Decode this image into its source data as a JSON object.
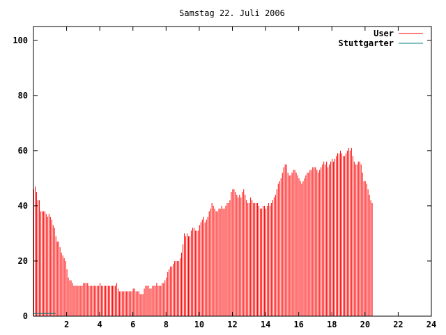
{
  "chart_data": {
    "type": "bar",
    "title": "Samstag 22. Juli 2006",
    "xlabel": "",
    "ylabel": "",
    "xlim": [
      0,
      24
    ],
    "ylim": [
      0,
      105
    ],
    "x_ticks": [
      2,
      4,
      6,
      8,
      10,
      12,
      14,
      16,
      18,
      20,
      22,
      24
    ],
    "y_ticks": [
      0,
      20,
      40,
      60,
      80,
      100
    ],
    "grid": false,
    "legend_position": "top-right",
    "series": [
      {
        "name": "User",
        "color": "#ff0000",
        "start_hour": 0.0,
        "step_hours": 0.0833,
        "values": [
          46,
          47,
          45,
          42,
          42,
          38,
          38,
          38,
          38,
          37,
          36,
          37,
          36,
          35,
          33,
          32,
          29,
          27,
          27,
          25,
          23,
          22,
          21,
          20,
          17,
          14,
          13,
          13,
          12,
          11,
          11,
          11,
          11,
          11,
          11,
          11,
          12,
          12,
          12,
          12,
          11,
          11,
          11,
          11,
          11,
          11,
          11,
          11,
          12,
          11,
          11,
          11,
          11,
          11,
          11,
          11,
          11,
          11,
          11,
          11,
          12,
          10,
          9,
          9,
          9,
          9,
          9,
          9,
          9,
          9,
          9,
          9,
          10,
          10,
          9,
          9,
          9,
          8,
          8,
          8,
          10,
          11,
          11,
          11,
          10,
          10,
          11,
          11,
          11,
          12,
          11,
          11,
          11,
          12,
          12,
          13,
          14,
          16,
          17,
          18,
          18,
          19,
          20,
          20,
          20,
          20,
          21,
          23,
          26,
          30,
          29,
          30,
          29,
          29,
          31,
          32,
          32,
          31,
          31,
          31,
          33,
          34,
          35,
          36,
          34,
          35,
          36,
          38,
          39,
          41,
          40,
          39,
          38,
          38,
          39,
          39,
          40,
          39,
          39,
          40,
          41,
          41,
          42,
          45,
          46,
          46,
          45,
          44,
          43,
          44,
          43,
          45,
          46,
          44,
          42,
          41,
          41,
          43,
          42,
          41,
          41,
          41,
          41,
          40,
          39,
          39,
          40,
          40,
          39,
          40,
          41,
          40,
          41,
          42,
          43,
          44,
          46,
          48,
          49,
          50,
          52,
          54,
          55,
          55,
          52,
          51,
          51,
          52,
          53,
          53,
          52,
          51,
          50,
          49,
          48,
          49,
          50,
          51,
          52,
          52,
          53,
          53,
          54,
          54,
          54,
          53,
          52,
          53,
          54,
          55,
          56,
          55,
          56,
          54,
          55,
          56,
          57,
          56,
          57,
          58,
          59,
          59,
          60,
          59,
          58,
          58,
          59,
          60,
          61,
          60,
          61,
          58,
          56,
          55,
          55,
          56,
          56,
          55,
          52,
          49,
          49,
          48,
          46,
          44,
          42,
          41
        ]
      },
      {
        "name": "Stuttgarter",
        "color": "#008080",
        "start_hour": 0.0,
        "step_hours": 0.0833,
        "values": [
          1,
          1,
          1,
          1,
          1,
          1,
          1,
          1,
          1,
          1,
          1,
          1,
          1,
          1,
          1,
          1,
          0,
          0,
          0,
          0,
          0,
          0,
          0,
          0,
          0,
          0,
          0,
          0,
          0,
          0,
          0,
          0,
          0,
          0,
          0,
          0,
          0,
          0,
          0,
          0,
          0,
          0,
          0,
          0,
          0,
          0,
          0,
          0,
          0,
          0,
          0,
          0,
          0,
          0,
          0,
          0,
          0,
          0,
          0,
          0,
          0,
          0,
          0,
          0,
          0,
          0,
          0,
          0,
          0,
          0,
          0,
          0,
          0,
          0,
          0,
          0,
          0,
          0,
          0,
          0,
          0,
          0,
          0,
          0,
          0,
          0,
          0,
          0,
          0,
          0,
          0,
          0,
          0,
          0,
          0,
          0,
          0,
          0,
          0,
          0,
          0,
          0,
          0,
          0,
          0,
          0,
          0,
          0,
          0,
          0,
          0,
          0,
          0,
          0,
          0,
          0,
          0,
          0,
          0,
          0,
          0,
          0,
          0,
          0,
          0,
          0,
          0,
          0,
          0,
          0,
          0,
          0,
          0,
          0,
          0,
          0,
          0,
          0,
          0,
          0,
          0,
          0,
          0,
          0,
          0,
          0,
          0,
          0,
          0,
          0,
          0,
          0,
          0,
          0,
          0,
          0,
          0,
          0,
          0,
          0,
          0,
          0,
          0,
          0,
          0,
          0,
          0,
          0,
          0,
          0,
          0,
          0,
          0,
          0,
          0,
          0,
          0,
          0,
          0,
          0,
          0,
          0,
          0,
          0,
          0,
          0,
          0,
          0,
          0,
          0,
          0,
          0,
          0,
          0,
          0,
          0,
          0,
          0,
          0,
          0,
          0,
          0,
          0,
          0,
          0,
          0,
          0,
          0,
          0,
          0,
          0,
          0,
          0,
          0,
          0,
          0,
          0,
          0,
          0,
          0,
          0,
          0,
          0,
          0,
          0,
          0,
          0,
          0,
          0,
          0,
          0,
          0,
          0,
          0,
          0,
          0,
          0,
          0,
          0,
          0,
          0,
          0,
          0,
          0,
          0,
          0,
          0,
          0,
          0,
          0,
          0,
          0,
          0,
          0,
          0,
          0,
          0,
          0,
          0,
          0,
          0,
          0,
          0,
          0,
          0,
          0,
          0,
          0,
          0,
          0,
          0,
          0,
          0
        ]
      }
    ]
  }
}
